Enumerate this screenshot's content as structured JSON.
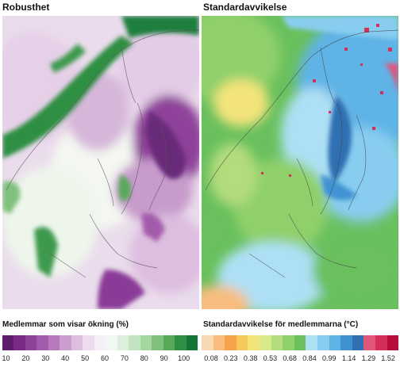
{
  "panels": {
    "left": {
      "title": "Robusthet",
      "legend_title": "Medlemmar som visar ökning (%)",
      "colorbar": [
        "#5e1c6e",
        "#782a85",
        "#8e429a",
        "#a35bab",
        "#b87abd",
        "#cc9ccf",
        "#ddbedf",
        "#ecdcee",
        "#f6f0f6",
        "#f1f8f1",
        "#ddefdc",
        "#c3e4c0",
        "#a4d6a0",
        "#7fc17c",
        "#57a95a",
        "#2f8f43",
        "#127535"
      ],
      "ticks": [
        "10",
        "20",
        "30",
        "40",
        "50",
        "60",
        "70",
        "80",
        "90",
        "100"
      ]
    },
    "right": {
      "title": "Standardavvikelse",
      "legend_title": "Standardavvikelse för medlemmarna (°C)",
      "colorbar": [
        "#f9d8b4",
        "#f8bd7e",
        "#f7a14d",
        "#f6c85a",
        "#f3e47a",
        "#d9e88a",
        "#b3dc7c",
        "#8fd06a",
        "#69c05d",
        "#aee0f5",
        "#88cdf0",
        "#5fb3e6",
        "#3f92d2",
        "#2f6fb2",
        "#e0557a",
        "#d42e5a",
        "#b80c3a"
      ],
      "ticks": [
        "0.08",
        "0.23",
        "0.38",
        "0.53",
        "0.68",
        "0.84",
        "0.99",
        "1.14",
        "1.29",
        "1.52"
      ]
    }
  }
}
